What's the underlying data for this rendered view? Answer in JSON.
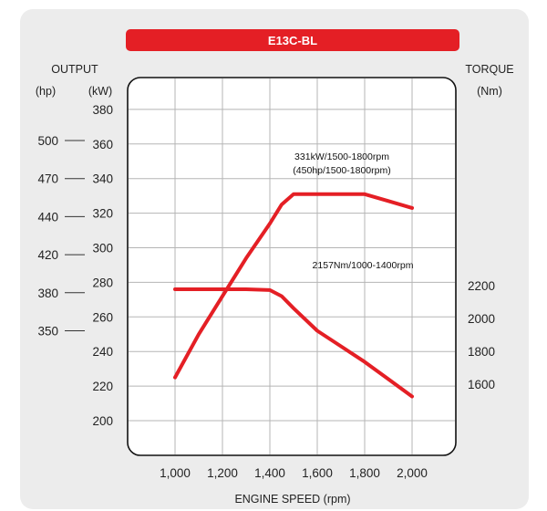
{
  "chart_data": {
    "type": "line",
    "title": "E13C-BL",
    "xlabel": "ENGINE SPEED (rpm)",
    "x_ticks": [
      "1,000",
      "1,200",
      "1,400",
      "1,600",
      "1,800",
      "2,000"
    ],
    "xlim": [
      1000,
      2000
    ],
    "left_axis_title": "OUTPUT",
    "hp_unit": "(hp)",
    "kw_unit": "(kW)",
    "kw_ticks": [
      200,
      220,
      240,
      260,
      280,
      300,
      320,
      340,
      360,
      380
    ],
    "hp_ticks": [
      {
        "label": "500",
        "kw": 362
      },
      {
        "label": "470",
        "kw": 340
      },
      {
        "label": "440",
        "kw": 318
      },
      {
        "label": "420",
        "kw": 296
      },
      {
        "label": "380",
        "kw": 274
      },
      {
        "label": "350",
        "kw": 252
      }
    ],
    "right_axis_title": "TORQUE",
    "torque_unit": "(Nm)",
    "torque_ticks": [
      {
        "label": "2200",
        "kw": 278
      },
      {
        "label": "2000",
        "kw": 259
      },
      {
        "label": "1800",
        "kw": 240
      },
      {
        "label": "1600",
        "kw": 221
      }
    ],
    "series": [
      {
        "curve": "power",
        "unit": "kW",
        "color": "#e41f25",
        "x": [
          1000,
          1100,
          1200,
          1300,
          1400,
          1450,
          1500,
          1600,
          1700,
          1800,
          1900,
          2000
        ],
        "values": [
          225,
          250,
          272,
          294,
          314,
          325,
          331,
          331,
          331,
          331,
          327,
          323
        ]
      },
      {
        "curve": "torque",
        "color": "#e41f25",
        "x": [
          1000,
          1100,
          1200,
          1300,
          1400,
          1450,
          1500,
          1600,
          1700,
          1800,
          1900,
          2000
        ],
        "values": [
          276,
          276,
          276,
          276,
          275.5,
          272,
          265,
          252,
          243,
          234,
          224,
          214
        ]
      }
    ],
    "annotations": {
      "power_line1": "331kW/1500-1800rpm",
      "power_line2": "(450hp/1500-1800rpm)",
      "torque": "2157Nm/1000-1400rpm"
    },
    "grid": true
  }
}
